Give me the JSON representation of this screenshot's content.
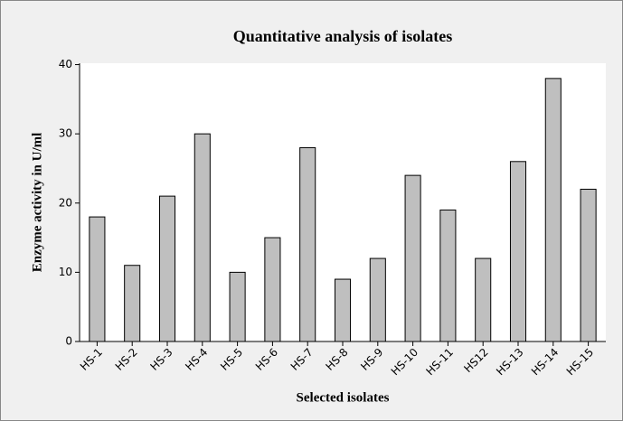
{
  "chart_data": {
    "type": "bar",
    "title": "Quantitative analysis of isolates",
    "x_label": "Selected isolates",
    "y_label": "Enzyme activity in U/ml",
    "categories": [
      "HS-1",
      "HS-2",
      "HS-3",
      "HS-4",
      "HS-5",
      "HS-6",
      "HS-7",
      "HS-8",
      "HS-9",
      "HS-10",
      "HS-11",
      "HS12",
      "HS-13",
      "HS-14",
      "HS-15"
    ],
    "values": [
      18,
      11,
      21,
      30,
      10,
      15,
      28,
      9,
      12,
      24,
      19,
      12,
      26,
      38,
      22
    ],
    "color": "#bfbfbf",
    "ylim": [
      0,
      40.2
    ],
    "yticks": [
      0,
      10,
      20,
      30,
      40
    ],
    "grid": false
  }
}
